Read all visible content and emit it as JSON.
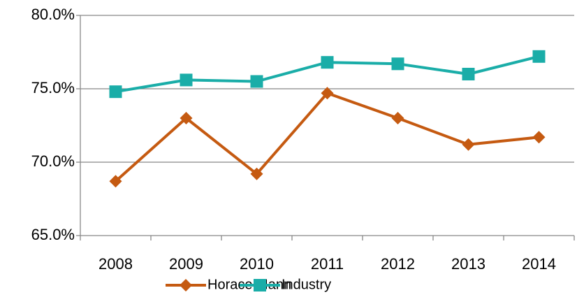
{
  "chart_data": {
    "type": "line",
    "categories": [
      "2008",
      "2009",
      "2010",
      "2011",
      "2012",
      "2013",
      "2014"
    ],
    "series": [
      {
        "name": "Horace Mann",
        "color": "#c55a11",
        "marker": "diamond",
        "values": [
          68.7,
          73.0,
          69.2,
          74.7,
          73.0,
          71.2,
          71.7
        ]
      },
      {
        "name": "Industry",
        "color": "#1aada8",
        "marker": "square",
        "values": [
          74.8,
          75.6,
          75.5,
          76.8,
          76.7,
          76.0,
          77.2
        ]
      }
    ],
    "ylim": [
      65,
      80
    ],
    "yticks": [
      {
        "value": 65,
        "label": "65.0%"
      },
      {
        "value": 70,
        "label": "70.0%"
      },
      {
        "value": 75,
        "label": "75.0%"
      },
      {
        "value": 80,
        "label": "80.0%"
      }
    ],
    "grid": true,
    "legend": "bottom"
  }
}
